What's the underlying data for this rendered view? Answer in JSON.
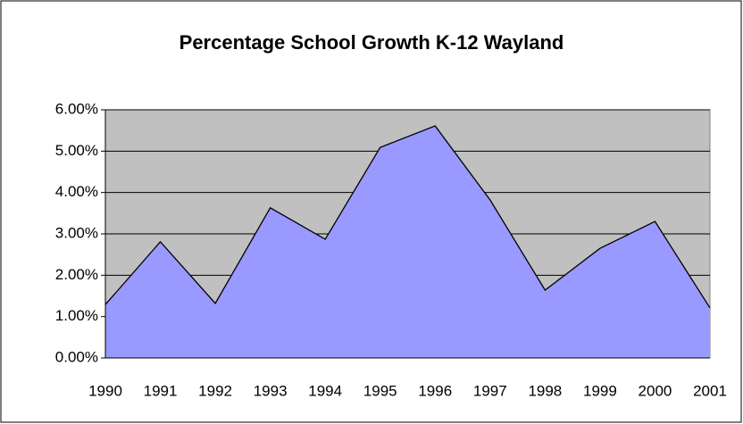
{
  "chart_data": {
    "type": "area",
    "title": "Percentage School Growth K-12 Wayland",
    "categories": [
      "1990",
      "1991",
      "1992",
      "1993",
      "1994",
      "1995",
      "1996",
      "1997",
      "1998",
      "1999",
      "2000",
      "2001"
    ],
    "values": [
      1.29,
      2.81,
      1.32,
      3.63,
      2.87,
      5.09,
      5.61,
      3.82,
      1.64,
      2.65,
      3.3,
      1.21
    ],
    "color": "#9999ff",
    "ylim": [
      0,
      6
    ],
    "yticks": [
      {
        "value": 0,
        "label": "0.00%"
      },
      {
        "value": 1,
        "label": "1.00%"
      },
      {
        "value": 2,
        "label": "2.00%"
      },
      {
        "value": 3,
        "label": "3.00%"
      },
      {
        "value": 4,
        "label": "4.00%"
      },
      {
        "value": 5,
        "label": "5.00%"
      },
      {
        "value": 6,
        "label": "6.00%"
      }
    ],
    "grid": true
  }
}
